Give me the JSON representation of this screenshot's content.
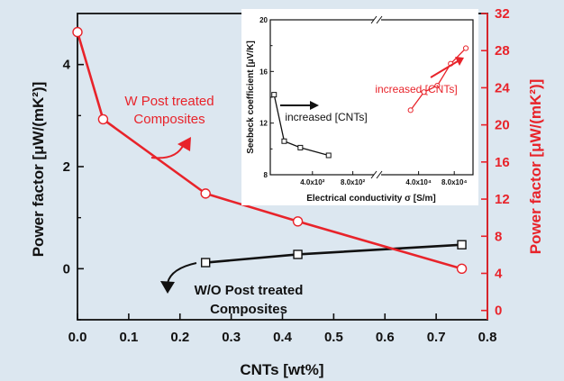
{
  "colors": {
    "background": "#dce7f0",
    "black": "#111111",
    "red": "#e8232a",
    "inset_background": "#ffffff"
  },
  "chart_data": [
    {
      "type": "line",
      "title": "",
      "xlabel": "CNTs [wt%]",
      "ylabel_left": "Power factor [μW/(mK²)]",
      "ylabel_right": "Power factor [μW/(mK²)]",
      "xlim": [
        0.0,
        0.8
      ],
      "ylim_left": [
        -1.0,
        5.0
      ],
      "ylim_right": [
        -1.0,
        32.0
      ],
      "x_ticks": [
        "0.0",
        "0.1",
        "0.2",
        "0.3",
        "0.4",
        "0.5",
        "0.6",
        "0.7",
        "0.8"
      ],
      "y_ticks_left": [
        "0",
        "2",
        "4"
      ],
      "y_ticks_right": [
        "0",
        "4",
        "8",
        "12",
        "16",
        "20",
        "24",
        "28",
        "32"
      ],
      "grid": false,
      "series": [
        {
          "axis": "left",
          "color": "#111111",
          "marker": "open-square",
          "x": [
            0.25,
            0.43,
            0.75
          ],
          "y": [
            0.12,
            0.28,
            0.47
          ]
        },
        {
          "axis": "right",
          "color": "#e8232a",
          "marker": "open-circle",
          "x": [
            0.0,
            0.05,
            0.25,
            0.43,
            0.75
          ],
          "y": [
            30.0,
            20.6,
            12.6,
            9.6,
            4.5
          ]
        }
      ],
      "annotations": {
        "red_label_line1": "W Post treated",
        "red_label_line2": "Composites",
        "black_label_line1": "W/O Post treated",
        "black_label_line2": "Composites"
      }
    },
    {
      "type": "line",
      "title": "",
      "xlabel": "Electrical conductivity σ [S/m]",
      "ylabel": "Seebeck coefficient [μV/K]",
      "ylim": [
        8,
        20
      ],
      "y_ticks": [
        "8",
        "12",
        "16",
        "20"
      ],
      "x_ticks_left": [
        "4.0x10²",
        "8.0x10²"
      ],
      "x_ticks_right": [
        "4.0x10⁴",
        "8.0x10⁴"
      ],
      "xlim_left": [
        0,
        1000
      ],
      "xlim_right": [
        0,
        100000
      ],
      "axis_break": true,
      "series": [
        {
          "segment": "left",
          "color": "#111111",
          "marker": "open-square",
          "x": [
            20,
            120,
            280,
            560
          ],
          "y": [
            14.2,
            10.6,
            10.1,
            9.5
          ]
        },
        {
          "segment": "right",
          "color": "#e8232a",
          "marker": "open-circle",
          "x": [
            31000,
            46000,
            61000,
            76000,
            93000
          ],
          "y": [
            13.0,
            14.4,
            14.9,
            16.6,
            17.8
          ]
        }
      ],
      "annotations": {
        "black_label": "increased [CNTs]",
        "red_label": "increased [CNTs]"
      }
    }
  ]
}
